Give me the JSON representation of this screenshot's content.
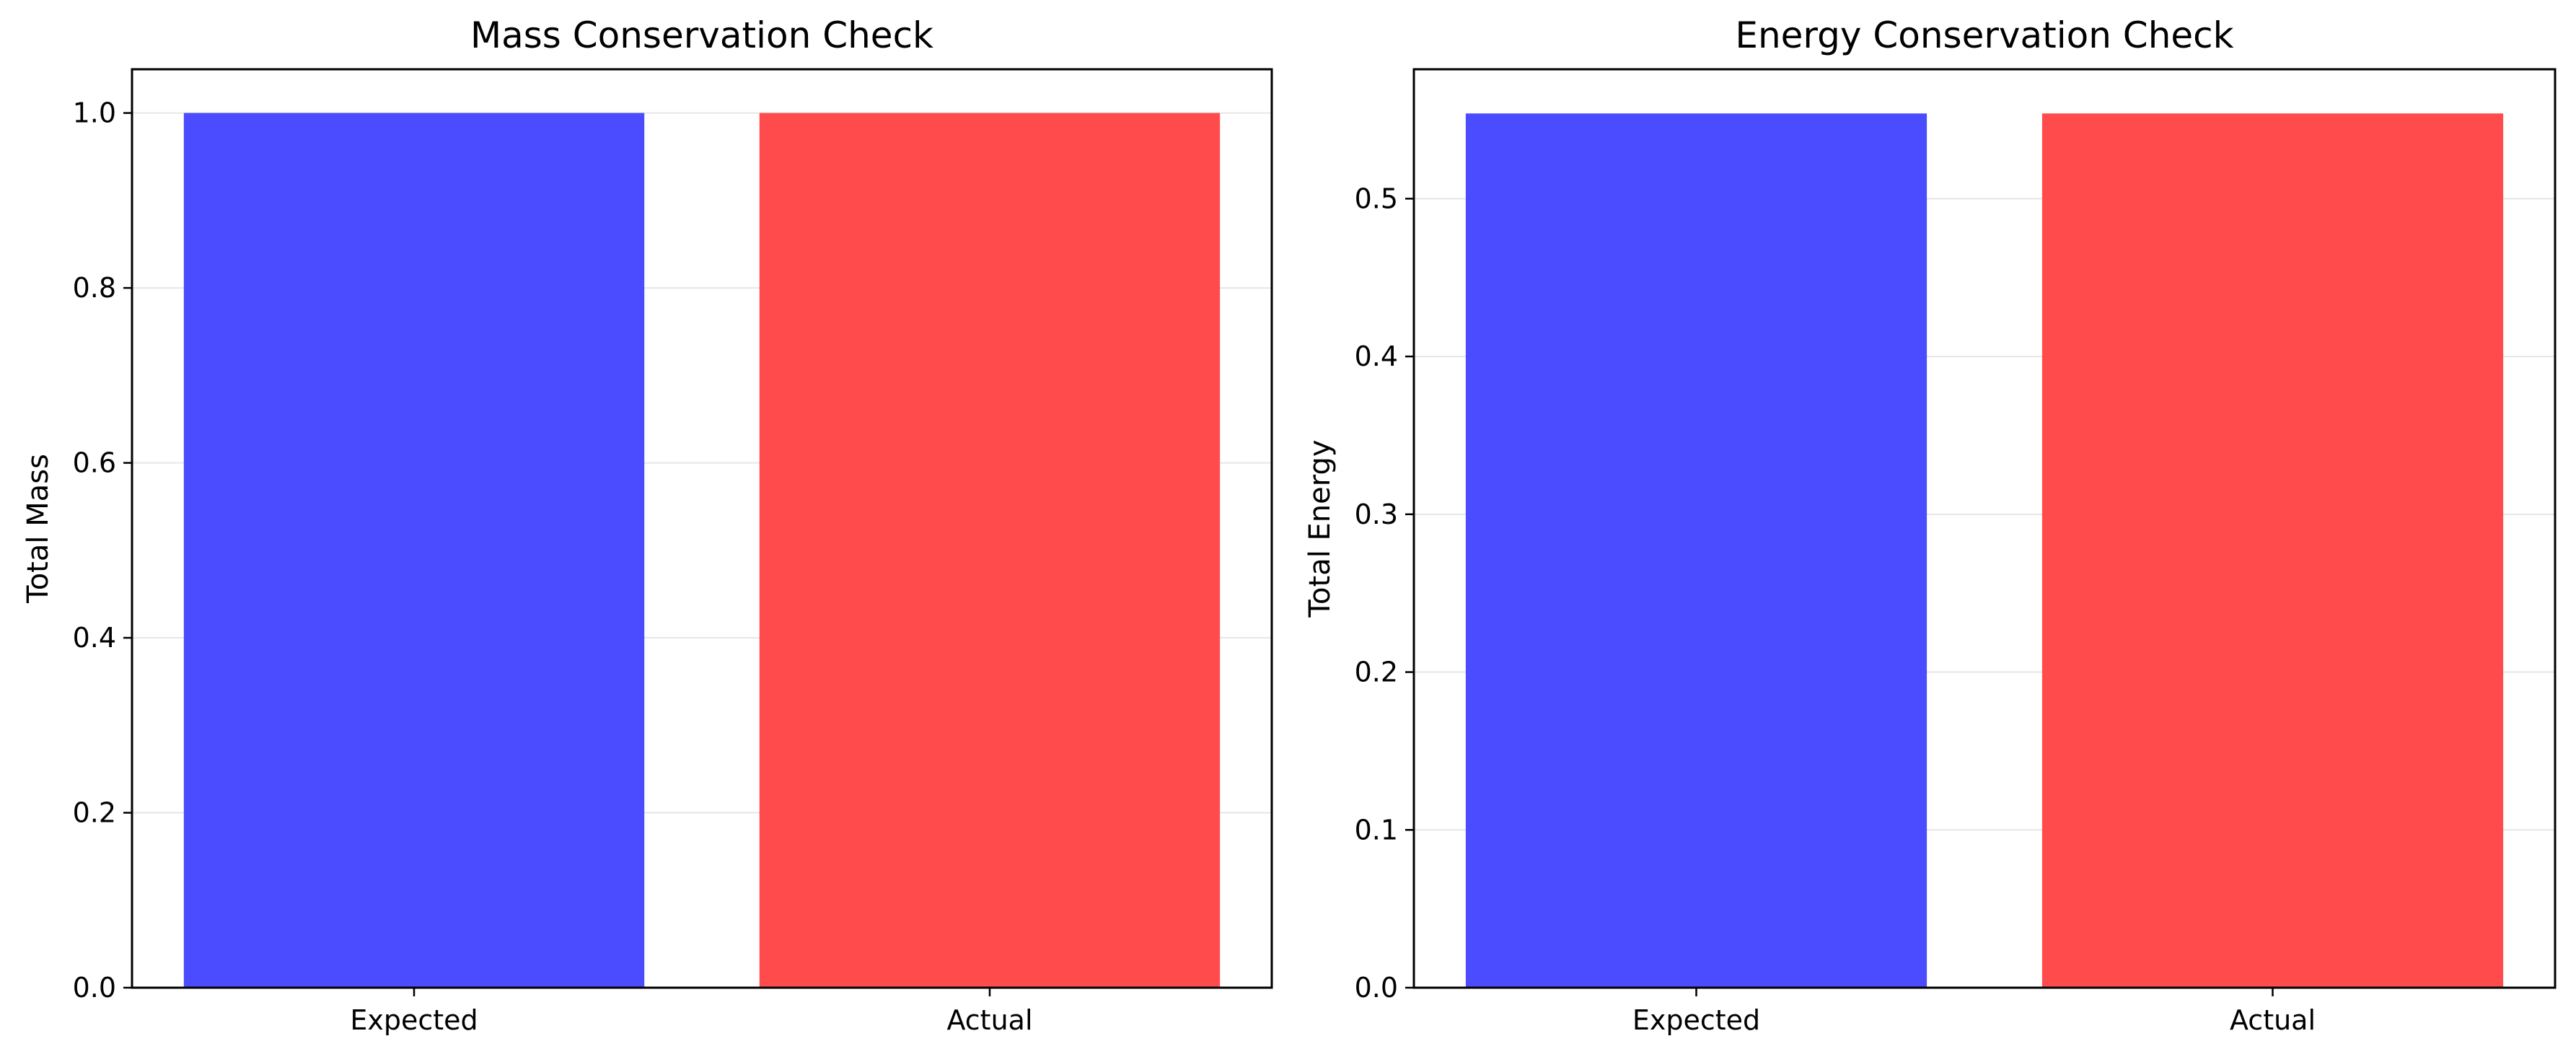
{
  "chart_data": [
    {
      "type": "bar",
      "title": "Mass Conservation Check",
      "xlabel": "",
      "ylabel": "Total Mass",
      "categories": [
        "Expected",
        "Actual"
      ],
      "values": [
        1.0,
        1.0
      ],
      "colors": [
        "#4b4bff",
        "#ff4b4b"
      ],
      "ylim": [
        0,
        1.05
      ],
      "yticks": [
        0.0,
        0.2,
        0.4,
        0.6,
        0.8,
        1.0
      ],
      "ytick_labels": [
        "0.0",
        "0.2",
        "0.4",
        "0.6",
        "0.8",
        "1.0"
      ],
      "grid": "y",
      "grid_color": "#e6e6e6",
      "legend": "none"
    },
    {
      "type": "bar",
      "title": "Energy Conservation Check",
      "xlabel": "",
      "ylabel": "Total Energy",
      "categories": [
        "Expected",
        "Actual"
      ],
      "values": [
        0.554,
        0.554
      ],
      "colors": [
        "#4b4bff",
        "#ff4b4b"
      ],
      "ylim": [
        0,
        0.582
      ],
      "yticks": [
        0.0,
        0.1,
        0.2,
        0.3,
        0.4,
        0.5
      ],
      "ytick_labels": [
        "0.0",
        "0.1",
        "0.2",
        "0.3",
        "0.4",
        "0.5"
      ],
      "grid": "y",
      "grid_color": "#e6e6e6",
      "legend": "none"
    }
  ]
}
